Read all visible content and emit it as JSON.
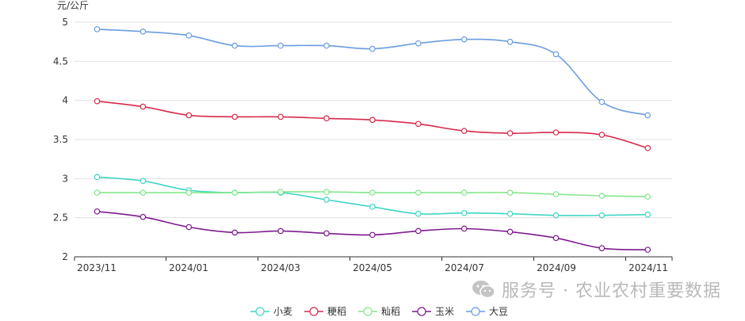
{
  "chart_data": {
    "type": "line",
    "unit_label": "元/公斤",
    "x_tick_labels": [
      "2023/11",
      "2024/01",
      "2024/03",
      "2024/05",
      "2024/07",
      "2024/09",
      "2024/11"
    ],
    "ylim": [
      2,
      5
    ],
    "y_ticks": [
      "2",
      "2.5",
      "3",
      "3.5",
      "4",
      "4.5",
      "5"
    ],
    "grid": "horizontal",
    "legend_position": "bottom-center",
    "series": [
      {
        "name": "小麦",
        "color": "#40d6c4",
        "values": [
          3.02,
          2.97,
          2.85,
          2.82,
          2.82,
          2.73,
          2.64,
          2.55,
          2.56,
          2.55,
          2.53,
          2.53,
          2.54
        ]
      },
      {
        "name": "粳稻",
        "color": "#d62a4a",
        "values": [
          3.99,
          3.92,
          3.81,
          3.79,
          3.79,
          3.77,
          3.75,
          3.7,
          3.61,
          3.58,
          3.59,
          3.56,
          3.39
        ]
      },
      {
        "name": "籼稻",
        "color": "#84e68c",
        "values": [
          2.82,
          2.82,
          2.82,
          2.82,
          2.83,
          2.83,
          2.82,
          2.82,
          2.82,
          2.82,
          2.8,
          2.78,
          2.77
        ]
      },
      {
        "name": "玉米",
        "color": "#7d1a8e",
        "values": [
          2.58,
          2.51,
          2.38,
          2.31,
          2.33,
          2.3,
          2.28,
          2.33,
          2.36,
          2.32,
          2.24,
          2.11,
          2.09
        ]
      },
      {
        "name": "大豆",
        "color": "#6a9de0",
        "values": [
          4.91,
          4.88,
          4.83,
          4.7,
          4.7,
          4.7,
          4.66,
          4.73,
          4.78,
          4.75,
          4.59,
          3.98,
          3.81
        ]
      }
    ]
  },
  "watermark": {
    "text": "服务号 · 农业农村重要数据",
    "icon": "wechat-icon"
  }
}
